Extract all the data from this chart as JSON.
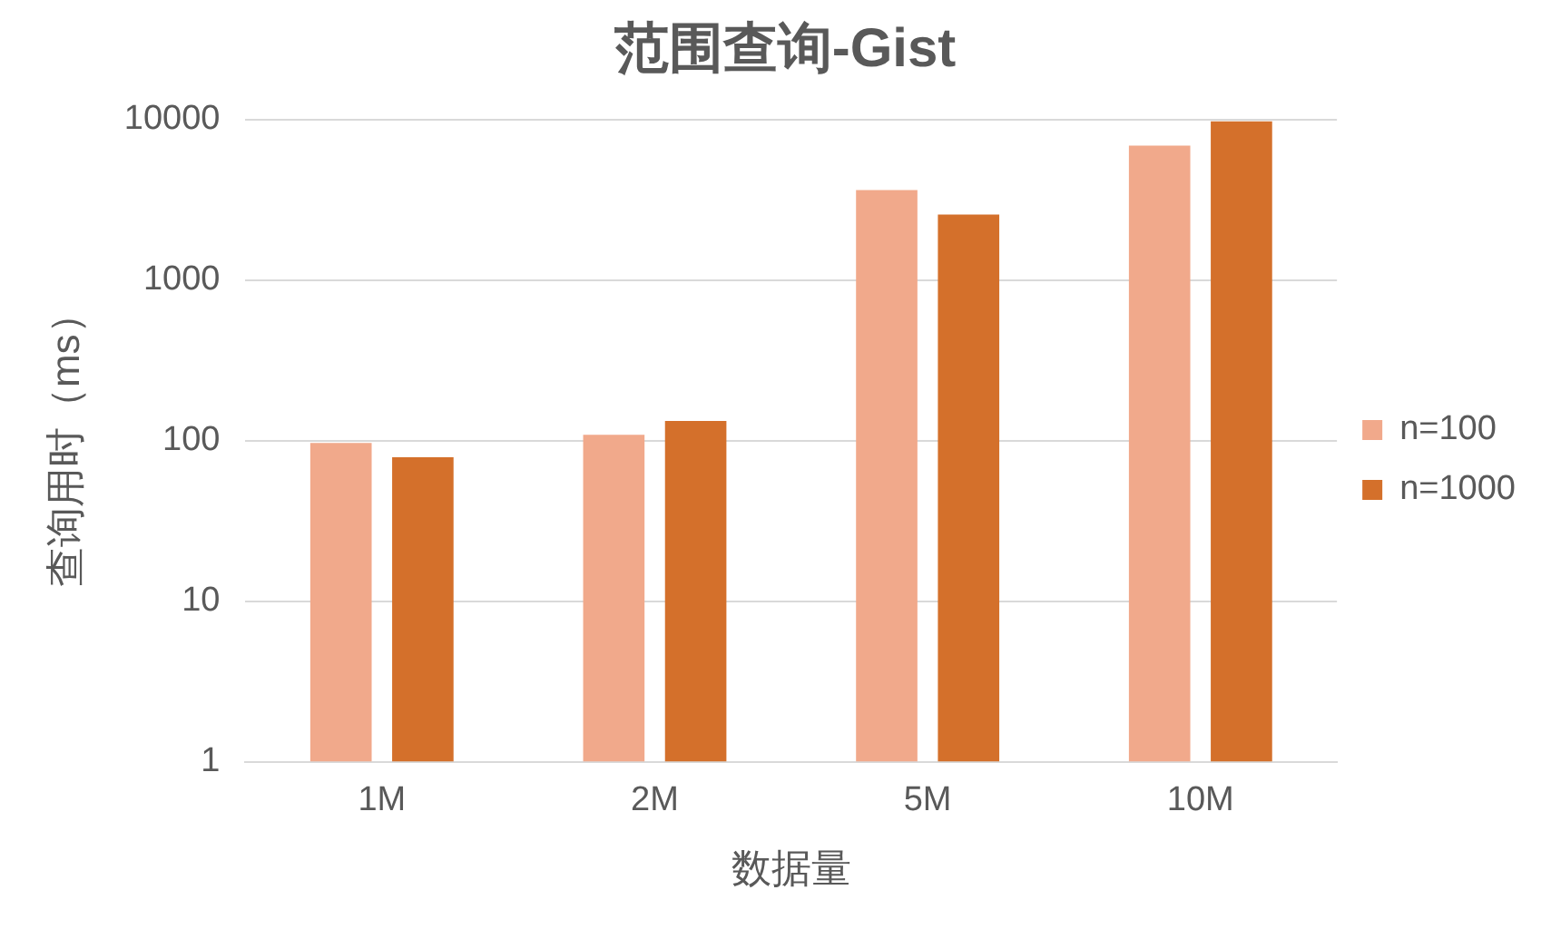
{
  "chart_data": {
    "type": "bar",
    "title": "范围查询-Gist",
    "xlabel": "数据量",
    "ylabel": "查询用时（ms）",
    "categories": [
      "1M",
      "2M",
      "5M",
      "10M"
    ],
    "series": [
      {
        "name": "n=100",
        "color": "#f1a98b",
        "values": [
          97,
          109,
          3650,
          6900
        ]
      },
      {
        "name": "n=1000",
        "color": "#d4702b",
        "values": [
          79,
          133,
          2570,
          9770
        ]
      }
    ],
    "log": "y",
    "ylim": [
      1,
      10000
    ],
    "yticks": [
      1,
      10,
      100,
      1000,
      10000
    ],
    "grid": "y",
    "legend": "right"
  }
}
